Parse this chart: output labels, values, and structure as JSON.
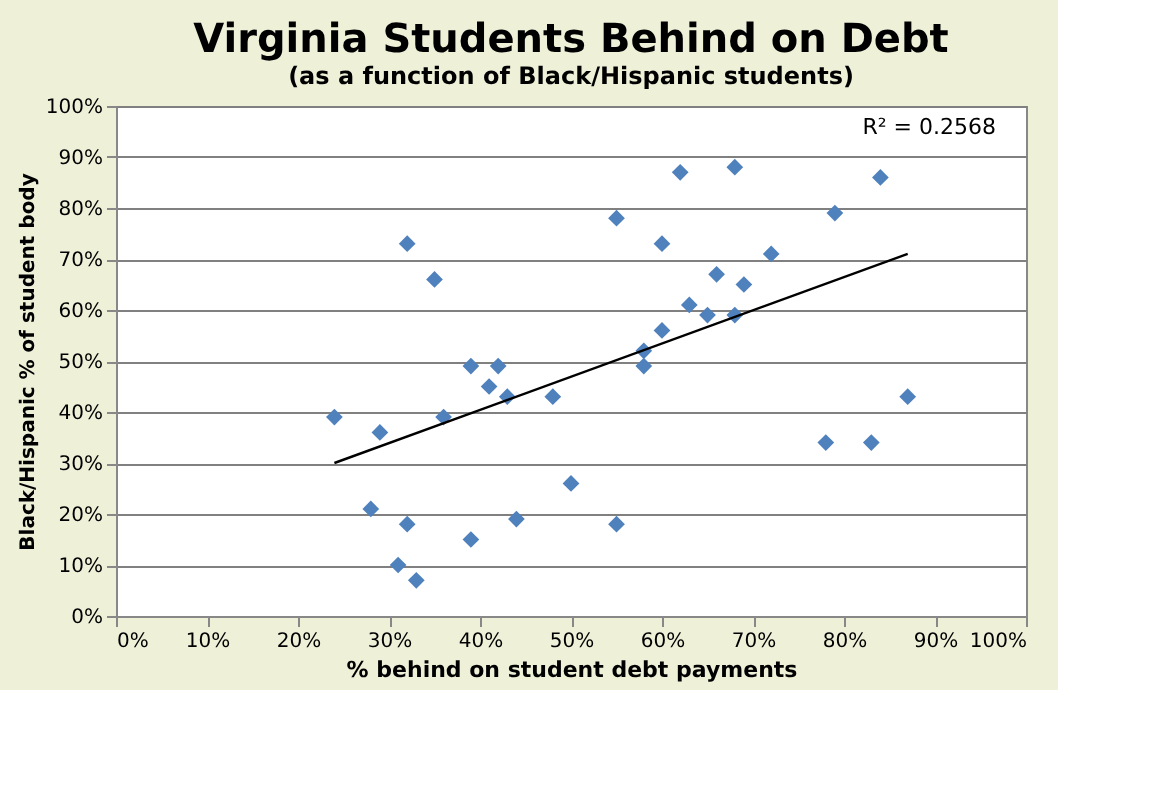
{
  "chart_data": {
    "type": "scatter",
    "title": "Virginia Students Behind on Debt",
    "subtitle": "(as a function of Black/Hispanic students)",
    "xlabel": "% behind on student debt payments",
    "ylabel": "Black/Hispanic  % of student body",
    "series": [
      {
        "type": "scatter",
        "color": "#4f81bd",
        "marker": "diamond",
        "x": [
          24,
          29,
          28,
          31,
          32,
          33,
          32,
          35,
          36,
          39,
          39,
          41,
          42,
          43,
          44,
          48,
          50,
          55,
          55,
          58,
          58,
          60,
          60,
          62,
          63,
          65,
          66,
          68,
          68,
          69,
          72,
          78,
          79,
          83,
          84,
          87
        ],
        "values": [
          39,
          36,
          21,
          10,
          18,
          7,
          73,
          66,
          39,
          49,
          15,
          45,
          49,
          43,
          19,
          43,
          26,
          78,
          18,
          52,
          49,
          73,
          56,
          87,
          61,
          59,
          67,
          88,
          59,
          65,
          71,
          34,
          79,
          34,
          86,
          43
        ]
      },
      {
        "type": "line",
        "color": "#000000",
        "x": [
          24,
          87
        ],
        "values": [
          30,
          71
        ]
      }
    ],
    "annotations": [
      "R² = 0.2568"
    ],
    "xlim": [
      0,
      100
    ],
    "ylim": [
      0,
      100
    ],
    "xticks": [
      {
        "value": 0,
        "label": "0%"
      },
      {
        "value": 10,
        "label": "10%"
      },
      {
        "value": 20,
        "label": "20%"
      },
      {
        "value": 30,
        "label": "30%"
      },
      {
        "value": 40,
        "label": "40%"
      },
      {
        "value": 50,
        "label": "50%"
      },
      {
        "value": 60,
        "label": "60%"
      },
      {
        "value": 70,
        "label": "70%"
      },
      {
        "value": 80,
        "label": "80%"
      },
      {
        "value": 90,
        "label": "90%"
      },
      {
        "value": 100,
        "label": "100%"
      }
    ],
    "yticks": [
      {
        "value": 0,
        "label": "0%"
      },
      {
        "value": 10,
        "label": "10%"
      },
      {
        "value": 20,
        "label": "20%"
      },
      {
        "value": 30,
        "label": "30%"
      },
      {
        "value": 40,
        "label": "40%"
      },
      {
        "value": 50,
        "label": "50%"
      },
      {
        "value": 60,
        "label": "60%"
      },
      {
        "value": 70,
        "label": "70%"
      },
      {
        "value": 80,
        "label": "80%"
      },
      {
        "value": 90,
        "label": "90%"
      },
      {
        "value": 100,
        "label": "100%"
      }
    ],
    "grid": "y"
  }
}
